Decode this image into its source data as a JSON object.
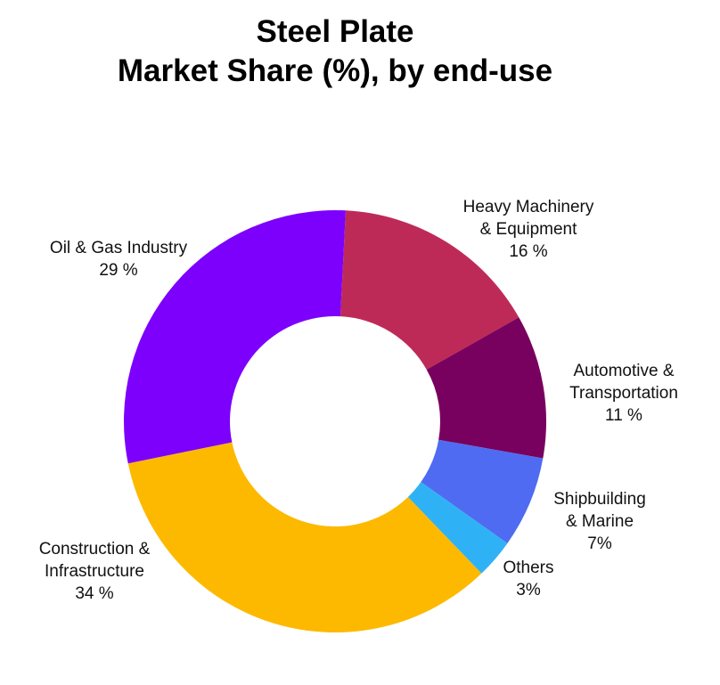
{
  "title": {
    "line1": "Steel Plate",
    "line2": "Market Share (%), by end-use"
  },
  "labels": [
    {
      "lines": [
        "Heavy Machinery",
        "& Equipment",
        "16 %"
      ]
    },
    {
      "lines": [
        "Automotive &",
        "Transportation",
        "11 %"
      ]
    },
    {
      "lines": [
        "Shipbuilding",
        "& Marine",
        "7%"
      ]
    },
    {
      "lines": [
        "Others",
        "3%"
      ]
    },
    {
      "lines": [
        "Construction &",
        "Infrastructure",
        "34 %"
      ]
    },
    {
      "lines": [
        "Oil & Gas Industry",
        "29 %"
      ]
    }
  ],
  "chart_data": {
    "type": "pie",
    "subtype": "donut",
    "title": "Steel Plate Market Share (%), by end-use",
    "categories": [
      "Heavy Machinery & Equipment",
      "Automotive & Transportation",
      "Shipbuilding & Marine",
      "Others",
      "Construction & Infrastructure",
      "Oil & Gas Industry"
    ],
    "values": [
      16,
      11,
      7,
      3,
      34,
      29
    ],
    "value_labels": [
      "16 %",
      "11 %",
      "7%",
      "3%",
      "34 %",
      "29 %"
    ],
    "colors": [
      "#BE2A57",
      "#78005E",
      "#4F6BF2",
      "#2FB2F5",
      "#FDB900",
      "#7C00FC"
    ],
    "unit": "%",
    "start_angle_deg": 2.9,
    "direction": "clockwise",
    "legend": "none (labels placed outside slices)"
  }
}
